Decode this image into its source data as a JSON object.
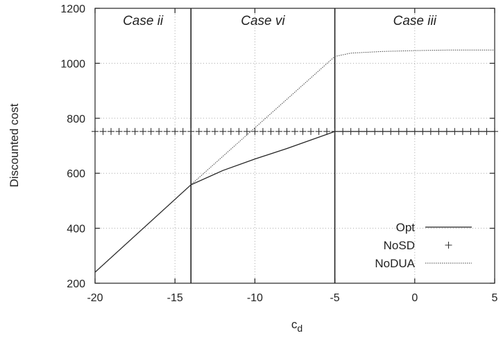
{
  "chart_data": {
    "type": "line",
    "xlabel": "c",
    "xlabel_sub": "d",
    "ylabel": "Discounted cost",
    "xlim": [
      -20,
      5
    ],
    "ylim": [
      200,
      1200
    ],
    "x_ticks": [
      -20,
      -15,
      -10,
      -5,
      0,
      5
    ],
    "y_ticks": [
      200,
      400,
      600,
      800,
      1000,
      1200
    ],
    "grid": true,
    "legend_position": "bottom-right",
    "vlines": [
      -14,
      -5
    ],
    "regions": [
      {
        "label": "Case ii",
        "x_from": -20,
        "x_to": -14
      },
      {
        "label": "Case vi",
        "x_from": -14,
        "x_to": -5
      },
      {
        "label": "Case iii",
        "x_from": -5,
        "x_to": 5
      }
    ],
    "series": [
      {
        "name": "Opt",
        "style": "solid",
        "points": [
          [
            -20,
            240
          ],
          [
            -14,
            558
          ],
          [
            -12,
            610
          ],
          [
            -10,
            652
          ],
          [
            -8,
            690
          ],
          [
            -5,
            752
          ],
          [
            5,
            752
          ]
        ]
      },
      {
        "name": "NoSD",
        "style": "markers",
        "y": 752,
        "x": [
          -20,
          -19.5,
          -19,
          -18.5,
          -18,
          -17.5,
          -17,
          -16.5,
          -16,
          -15.5,
          -15,
          -14.5,
          -14,
          -13.5,
          -13,
          -12.5,
          -12,
          -11.5,
          -11,
          -10.5,
          -10,
          -9.5,
          -9,
          -8.5,
          -8,
          -7.5,
          -7,
          -6.5,
          -6,
          -5.5,
          -5,
          -4.5,
          -4,
          -3.5,
          -3,
          -2.5,
          -2,
          -1.5,
          -1,
          -0.5,
          0,
          0.5,
          1,
          1.5,
          2,
          2.5,
          3,
          3.5,
          4,
          4.5,
          5
        ]
      },
      {
        "name": "NoDUA",
        "style": "dotted",
        "points": [
          [
            -20,
            240
          ],
          [
            -14,
            558
          ],
          [
            -5,
            1025
          ],
          [
            -4,
            1037
          ],
          [
            -2,
            1043
          ],
          [
            0,
            1046
          ],
          [
            2,
            1048
          ],
          [
            5,
            1048
          ]
        ]
      }
    ]
  }
}
